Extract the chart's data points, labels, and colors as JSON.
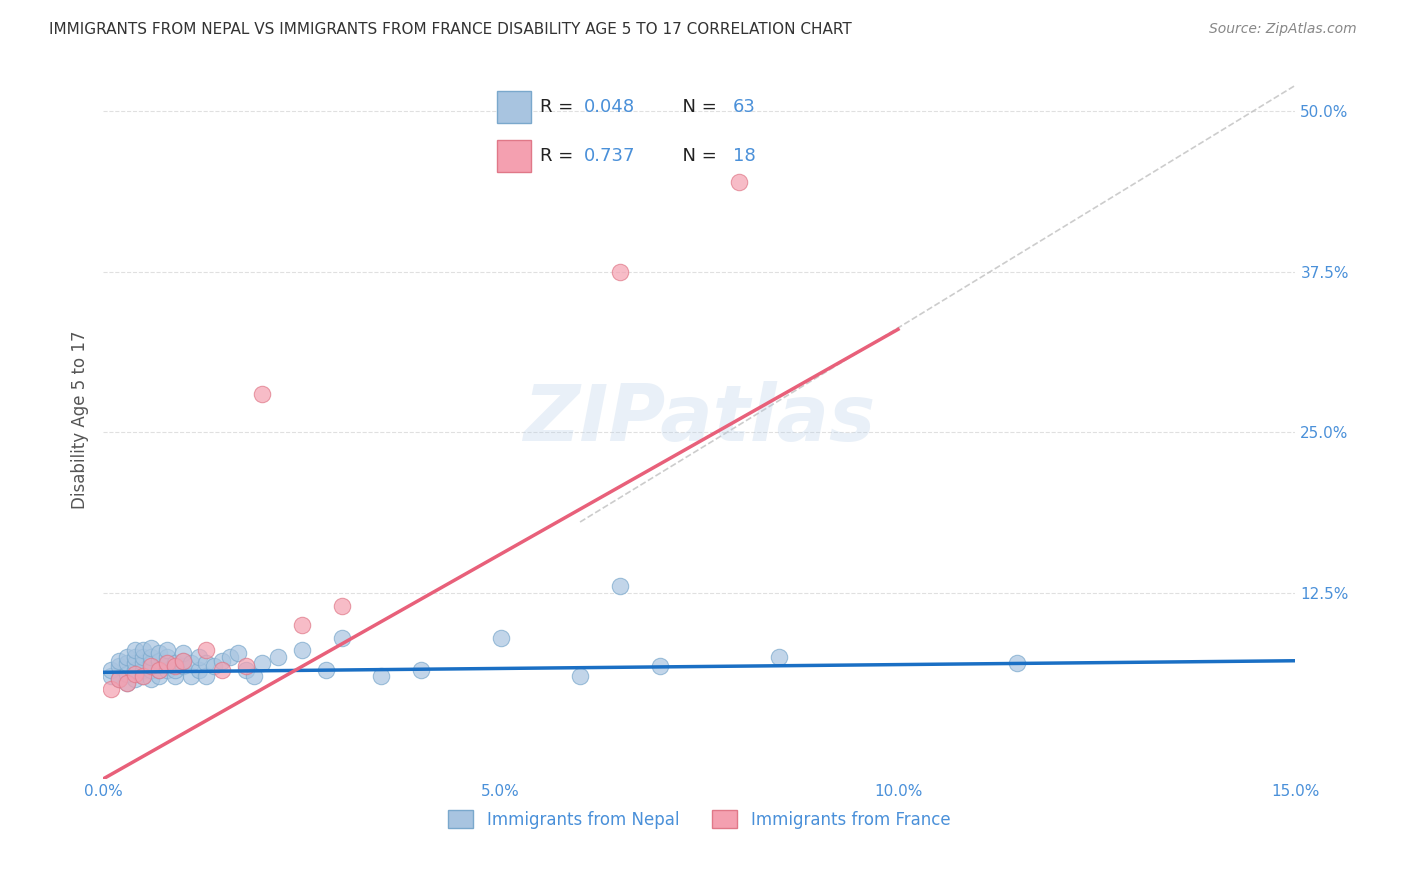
{
  "title": "IMMIGRANTS FROM NEPAL VS IMMIGRANTS FROM FRANCE DISABILITY AGE 5 TO 17 CORRELATION CHART",
  "source": "Source: ZipAtlas.com",
  "ylabel": "Disability Age 5 to 17",
  "xlim": [
    0.0,
    0.15
  ],
  "ylim": [
    -0.02,
    0.54
  ],
  "plot_ylim": [
    0.0,
    0.52
  ],
  "xticks": [
    0.0,
    0.05,
    0.1,
    0.15
  ],
  "xticklabels": [
    "0.0%",
    "5.0%",
    "10.0%",
    "15.0%"
  ],
  "yticks_right": [
    0.125,
    0.25,
    0.375,
    0.5
  ],
  "yticklabels_right": [
    "12.5%",
    "25.0%",
    "37.5%",
    "50.0%"
  ],
  "nepal_color": "#a8c4e0",
  "nepal_edge_color": "#7aa8cc",
  "france_color": "#f4a0b0",
  "france_edge_color": "#e07888",
  "nepal_R": 0.048,
  "nepal_N": 63,
  "france_R": 0.737,
  "france_N": 18,
  "nepal_label": "Immigrants from Nepal",
  "france_label": "Immigrants from France",
  "legend_R_color": "#4a90d9",
  "legend_label_color": "#222222",
  "watermark": "ZIPatlas",
  "nepal_scatter_x": [
    0.001,
    0.001,
    0.002,
    0.002,
    0.002,
    0.003,
    0.003,
    0.003,
    0.003,
    0.004,
    0.004,
    0.004,
    0.004,
    0.004,
    0.005,
    0.005,
    0.005,
    0.005,
    0.005,
    0.006,
    0.006,
    0.006,
    0.006,
    0.006,
    0.007,
    0.007,
    0.007,
    0.007,
    0.008,
    0.008,
    0.008,
    0.008,
    0.009,
    0.009,
    0.009,
    0.01,
    0.01,
    0.01,
    0.011,
    0.011,
    0.012,
    0.012,
    0.013,
    0.013,
    0.014,
    0.015,
    0.016,
    0.017,
    0.018,
    0.019,
    0.02,
    0.022,
    0.025,
    0.028,
    0.03,
    0.035,
    0.04,
    0.05,
    0.06,
    0.065,
    0.07,
    0.085,
    0.115
  ],
  "nepal_scatter_y": [
    0.06,
    0.065,
    0.058,
    0.068,
    0.072,
    0.055,
    0.062,
    0.07,
    0.075,
    0.058,
    0.065,
    0.07,
    0.075,
    0.08,
    0.06,
    0.065,
    0.07,
    0.075,
    0.08,
    0.058,
    0.065,
    0.07,
    0.075,
    0.082,
    0.06,
    0.065,
    0.072,
    0.078,
    0.065,
    0.07,
    0.075,
    0.08,
    0.06,
    0.065,
    0.07,
    0.068,
    0.072,
    0.078,
    0.06,
    0.07,
    0.065,
    0.075,
    0.06,
    0.07,
    0.068,
    0.072,
    0.075,
    0.078,
    0.065,
    0.06,
    0.07,
    0.075,
    0.08,
    0.065,
    0.09,
    0.06,
    0.065,
    0.09,
    0.06,
    0.13,
    0.068,
    0.075,
    0.07
  ],
  "france_scatter_x": [
    0.001,
    0.002,
    0.003,
    0.004,
    0.005,
    0.006,
    0.007,
    0.008,
    0.009,
    0.01,
    0.013,
    0.015,
    0.018,
    0.02,
    0.025,
    0.03,
    0.065,
    0.08
  ],
  "france_scatter_y": [
    0.05,
    0.058,
    0.055,
    0.062,
    0.06,
    0.068,
    0.065,
    0.07,
    0.068,
    0.072,
    0.08,
    0.065,
    0.068,
    0.28,
    0.1,
    0.115,
    0.375,
    0.445
  ],
  "nepal_line_x": [
    0.0,
    0.15
  ],
  "nepal_line_y": [
    0.063,
    0.072
  ],
  "france_line_x": [
    0.0,
    0.1
  ],
  "france_line_y": [
    -0.02,
    0.33
  ],
  "diagonal_line_x": [
    0.06,
    0.15
  ],
  "diagonal_line_y": [
    0.18,
    0.52
  ],
  "nepal_line_color": "#1a6fc4",
  "france_line_color": "#e8607a",
  "diagonal_color": "#c0c0c0",
  "grid_color": "#e0e0e0",
  "grid_line_style": "--",
  "title_color": "#333333",
  "axis_color": "#4a90d9",
  "background_color": "#ffffff"
}
